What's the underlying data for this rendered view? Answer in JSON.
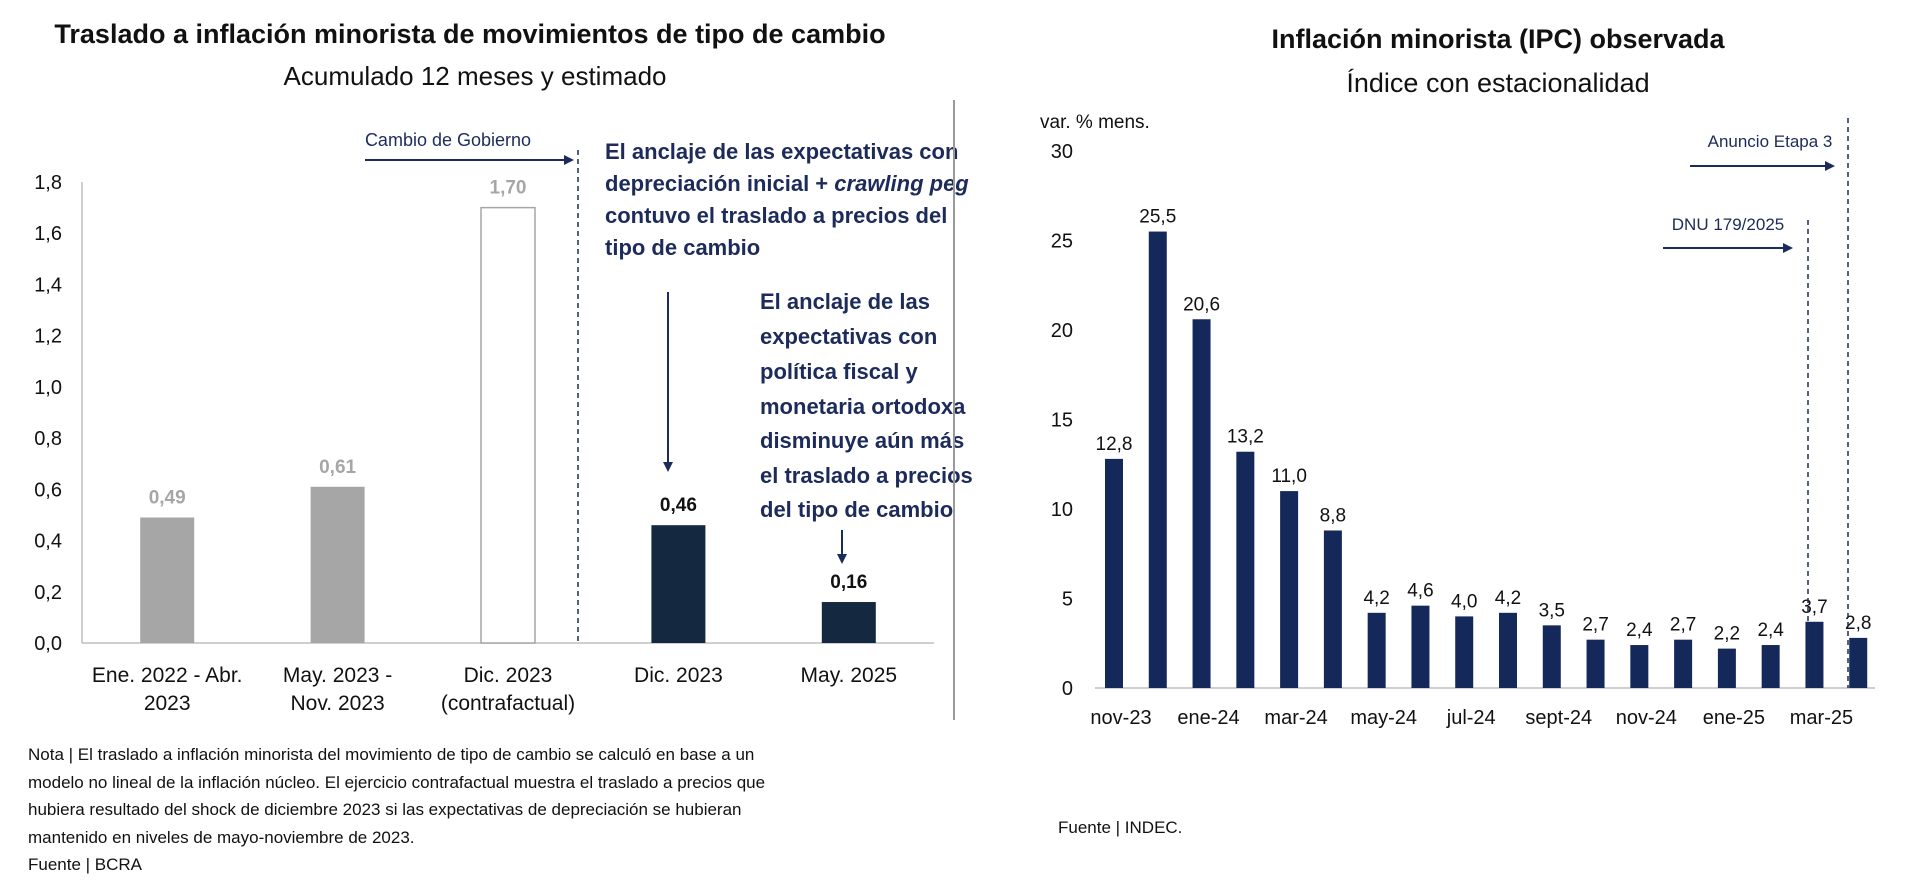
{
  "colors": {
    "gray_bar": "#a6a6a6",
    "gray_label": "#a6a6a6",
    "dark_bar": "#14283f",
    "navy_bar": "#14285a",
    "navy_text": "#1c2b5a",
    "axis": "#bfbfbf",
    "divider": "#9a9a9a"
  },
  "left_panel": {
    "title": "Traslado a inflación minorista de movimientos de tipo de cambio",
    "subtitle": "Acumulado 12 meses y estimado",
    "annotation_gov": "Cambio de Gobierno",
    "annotation_1": {
      "lines": [
        "El anclaje de las expectativas con",
        "depreciación inicial + ",
        "contuvo el traslado a precios del",
        "tipo de cambio"
      ],
      "italic": "crawling peg"
    },
    "annotation_2": {
      "lines": [
        "El anclaje de las",
        "expectativas con",
        "política fiscal y",
        "monetaria ortodoxa",
        "disminuye aún más",
        "el traslado a precios",
        "del tipo de cambio"
      ]
    },
    "note_lines": [
      "Nota | El traslado a inflación minorista del movimiento de tipo de cambio se calculó en base a un",
      "modelo no lineal de la inflación núcleo. El ejercicio contrafactual muestra el traslado a precios que",
      "hubiera resultado del shock de diciembre 2023 si las expectativas de depreciación se hubieran",
      "mantenido en niveles de mayo-noviembre de 2023."
    ],
    "source": "Fuente | BCRA"
  },
  "right_panel": {
    "title": "Inflación minorista (IPC) observada",
    "subtitle": "Índice con estacionalidad",
    "annotation_dnu": "DNU 179/2025",
    "annotation_etapa": "Anuncio Etapa 3",
    "source": "Fuente | INDEC."
  },
  "chart_data": [
    {
      "type": "bar",
      "title": "Traslado a inflación minorista de movimientos de tipo de cambio",
      "subtitle": "Acumulado 12 meses y estimado",
      "categories": [
        [
          "Ene. 2022 - Abr.",
          "2023"
        ],
        [
          "May. 2023 -",
          "Nov. 2023"
        ],
        [
          "Dic. 2023",
          "(contrafactual)"
        ],
        [
          "Dic. 2023"
        ],
        [
          "May. 2025"
        ]
      ],
      "values": [
        0.49,
        0.61,
        1.7,
        0.46,
        0.16
      ],
      "value_labels": [
        "0,49",
        "0,61",
        "1,70",
        "0,46",
        "0,16"
      ],
      "bar_styles": [
        "gray",
        "gray",
        "outline",
        "dark",
        "dark"
      ],
      "ylim": [
        0,
        1.8
      ],
      "yticks": [
        "0,0",
        "0,2",
        "0,4",
        "0,6",
        "0,8",
        "1,0",
        "1,2",
        "1,4",
        "1,6",
        "1,8"
      ],
      "ylabel": "",
      "xlabel": ""
    },
    {
      "type": "bar",
      "title": "Inflación minorista (IPC) observada",
      "subtitle": "Índice con estacionalidad",
      "ylabel": "var. % mens.",
      "xlabel": "",
      "months": [
        "nov-23",
        "dic-23",
        "ene-24",
        "feb-24",
        "mar-24",
        "abr-24",
        "may-24",
        "jun-24",
        "jul-24",
        "ago-24",
        "sept-24",
        "oct-24",
        "nov-24",
        "dic-24",
        "ene-25",
        "feb-25",
        "mar-25",
        "abr-25"
      ],
      "values": [
        12.8,
        25.5,
        20.6,
        13.2,
        11.0,
        8.8,
        4.2,
        4.6,
        4.0,
        4.2,
        3.5,
        2.7,
        2.4,
        2.7,
        2.2,
        2.4,
        3.7,
        2.8
      ],
      "value_labels": [
        "12,8",
        "25,5",
        "20,6",
        "13,2",
        "11,0",
        "8,8",
        "4,2",
        "4,6",
        "4,0",
        "4,2",
        "3,5",
        "2,7",
        "2,4",
        "2,7",
        "2,2",
        "2,4",
        "3,7",
        "2,8"
      ],
      "xtick_labels": [
        "nov-23",
        "ene-24",
        "mar-24",
        "may-24",
        "jul-24",
        "sept-24",
        "nov-24",
        "ene-25",
        "mar-25"
      ],
      "ylim": [
        0,
        30
      ],
      "yticks": [
        "0",
        "5",
        "10",
        "15",
        "20",
        "25",
        "30"
      ]
    }
  ]
}
